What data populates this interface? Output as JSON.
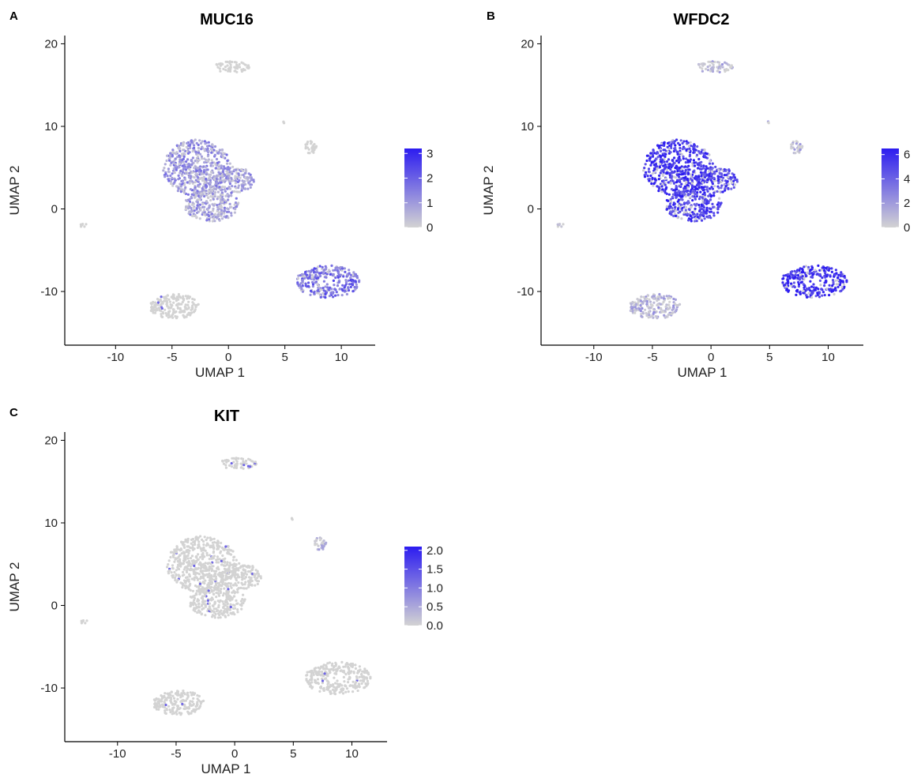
{
  "chart_data": [
    {
      "type": "scatter",
      "panel_label": "A",
      "title": "MUC16",
      "xlabel": "UMAP 1",
      "ylabel": "UMAP 2",
      "xlim": [
        -14.5,
        13
      ],
      "ylim": [
        -16.5,
        21
      ],
      "x_ticks": [
        -10,
        -5,
        0,
        5,
        10
      ],
      "y_ticks": [
        -10,
        0,
        10,
        20
      ],
      "color_scale": {
        "low": "#d3d3d3",
        "high": "#2c1cf0",
        "min": 0,
        "max": 3.2
      },
      "legend_ticks": [
        "3",
        "2",
        "1",
        "0"
      ],
      "legend_values": [
        3,
        2,
        1,
        0
      ],
      "legend_placement": "right",
      "intensity_by_cluster": {
        "central_upper": 0.28,
        "central_right_arm": 0.22,
        "central_lower": 0.22,
        "lower_right": 0.5,
        "top": 0.0,
        "small_right": 0.0,
        "lower_left": 0.03,
        "far_left": 0.0,
        "tiny_dot": 0.0
      }
    },
    {
      "type": "scatter",
      "panel_label": "B",
      "title": "WFDC2",
      "xlabel": "UMAP 1",
      "ylabel": "UMAP 2",
      "xlim": [
        -14.5,
        13
      ],
      "ylim": [
        -16.5,
        21
      ],
      "x_ticks": [
        -10,
        -5,
        0,
        5,
        10
      ],
      "y_ticks": [
        -10,
        0,
        10,
        20
      ],
      "color_scale": {
        "low": "#d3d3d3",
        "high": "#2c1cf0",
        "min": 0,
        "max": 6.5
      },
      "legend_ticks": [
        "6",
        "4",
        "2",
        "0"
      ],
      "legend_values": [
        6,
        4,
        2,
        0
      ],
      "legend_placement": "right",
      "intensity_by_cluster": {
        "central_upper": 0.82,
        "central_right_arm": 0.75,
        "central_lower": 0.75,
        "lower_right": 0.85,
        "top": 0.06,
        "small_right": 0.08,
        "lower_left": 0.1,
        "far_left": 0.05,
        "tiny_dot": 0.0
      }
    },
    {
      "type": "scatter",
      "panel_label": "C",
      "title": "KIT",
      "xlabel": "UMAP 1",
      "ylabel": "UMAP 2",
      "xlim": [
        -14.5,
        13
      ],
      "ylim": [
        -16.5,
        21
      ],
      "x_ticks": [
        -10,
        -5,
        0,
        5,
        10
      ],
      "y_ticks": [
        -10,
        0,
        10,
        20
      ],
      "color_scale": {
        "low": "#d3d3d3",
        "high": "#2c1cf0",
        "min": 0,
        "max": 2.1
      },
      "legend_ticks": [
        "2.0",
        "1.5",
        "1.0",
        "0.5",
        "0.0"
      ],
      "legend_values": [
        2.0,
        1.5,
        1.0,
        0.5,
        0.0
      ],
      "legend_placement": "right",
      "intensity_by_cluster": {
        "central_upper": 0.01,
        "central_right_arm": 0.01,
        "central_lower": 0.01,
        "lower_right": 0.0,
        "top": 0.0,
        "small_right": 0.05,
        "lower_left": 0.03,
        "far_left": 0.0,
        "tiny_dot": 0.0
      }
    }
  ],
  "clusters": [
    {
      "name": "central_upper",
      "cx": -2.8,
      "cy": 5.0,
      "rx": 3.0,
      "ry": 3.4,
      "n": 520
    },
    {
      "name": "central_right_arm",
      "cx": 0.5,
      "cy": 3.5,
      "rx": 1.8,
      "ry": 1.6,
      "n": 160
    },
    {
      "name": "central_lower",
      "cx": -1.5,
      "cy": 0.5,
      "rx": 2.4,
      "ry": 2.0,
      "n": 260
    },
    {
      "name": "lower_right",
      "cx": 8.8,
      "cy": -8.8,
      "rx": 2.8,
      "ry": 2.0,
      "n": 320
    },
    {
      "name": "top",
      "cx": 0.3,
      "cy": 17.2,
      "rx": 1.6,
      "ry": 0.7,
      "n": 60
    },
    {
      "name": "small_right",
      "cx": 7.3,
      "cy": 7.5,
      "rx": 0.5,
      "ry": 0.8,
      "n": 30
    },
    {
      "name": "lower_left",
      "cx": -4.8,
      "cy": -11.8,
      "rx": 2.2,
      "ry": 1.5,
      "n": 200
    },
    {
      "name": "far_left",
      "cx": -12.8,
      "cy": -2.0,
      "rx": 0.4,
      "ry": 0.2,
      "n": 8
    },
    {
      "name": "tiny_dot",
      "cx": 4.9,
      "cy": 10.5,
      "rx": 0.08,
      "ry": 0.12,
      "n": 3
    }
  ]
}
